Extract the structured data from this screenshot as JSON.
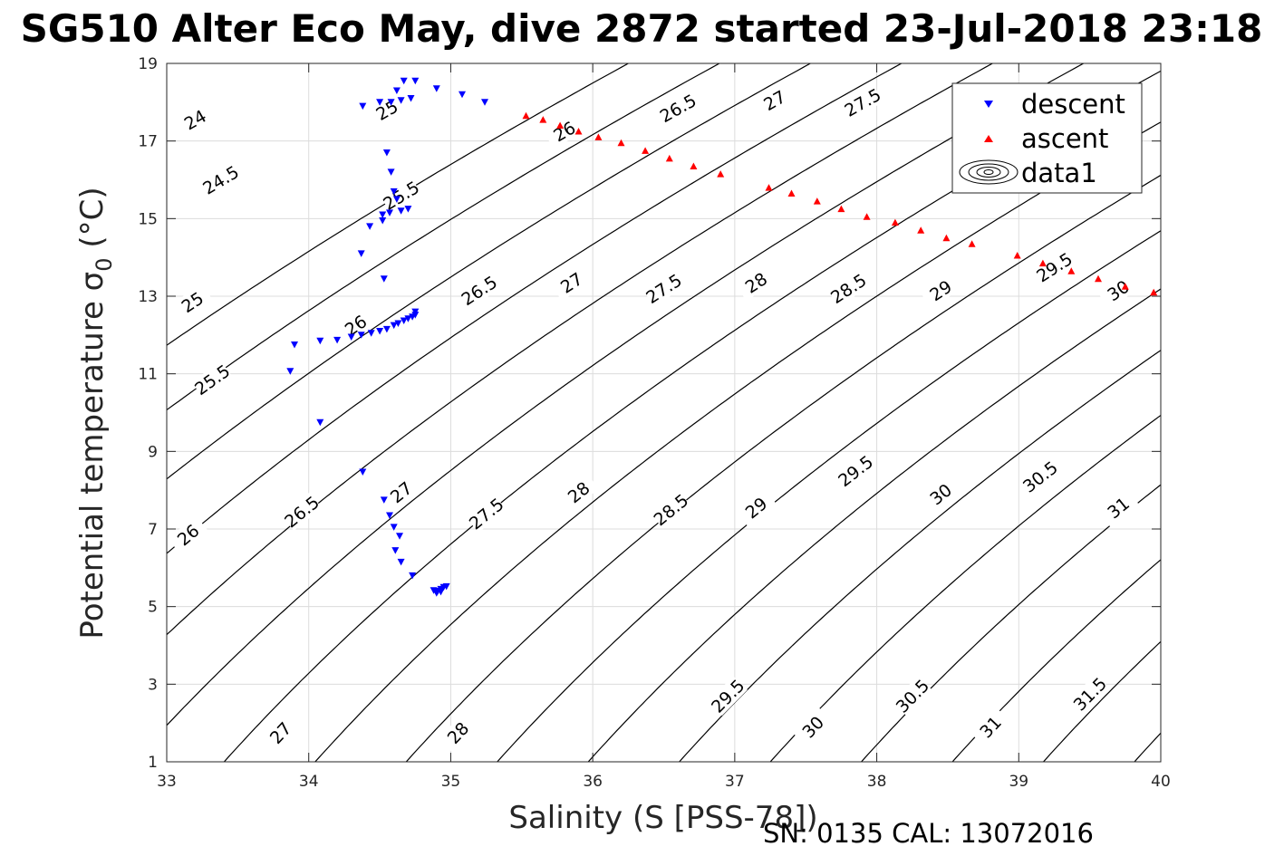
{
  "chart_data": {
    "type": "scatter",
    "title": "SG510 Alter Eco May, dive 2872 started 23-Jul-2018 23:18",
    "xlabel": "Salinity (S [PSS-78])",
    "ylabel": "Potential temperature σ₀ (°C)",
    "ylabel_main": "Potential temperature σ",
    "ylabel_sub": "0",
    "ylabel_unit": " (°C)",
    "footer": "SN: 0135  CAL: 13072016",
    "xlim": [
      33,
      40
    ],
    "ylim": [
      1,
      19
    ],
    "xticks": [
      "33",
      "34",
      "35",
      "36",
      "37",
      "38",
      "39",
      "40"
    ],
    "yticks": [
      "1",
      "3",
      "5",
      "7",
      "9",
      "11",
      "13",
      "15",
      "17",
      "19"
    ],
    "grid": true,
    "legend_position": "top-right",
    "legend": [
      "descent",
      "ascent",
      "data1"
    ],
    "colors": {
      "descent": "#0000ff",
      "ascent": "#ff0000",
      "contour": "#000000"
    },
    "series": [
      {
        "name": "descent",
        "marker": "triangle-down",
        "color": "#0000ff",
        "points": [
          [
            34.38,
            17.9
          ],
          [
            34.5,
            18.0
          ],
          [
            34.58,
            18.0
          ],
          [
            34.65,
            18.05
          ],
          [
            34.72,
            18.1
          ],
          [
            34.62,
            18.3
          ],
          [
            34.67,
            18.55
          ],
          [
            34.75,
            18.55
          ],
          [
            34.9,
            18.35
          ],
          [
            35.08,
            18.2
          ],
          [
            35.24,
            18.0
          ],
          [
            34.55,
            16.7
          ],
          [
            34.58,
            16.2
          ],
          [
            34.6,
            15.7
          ],
          [
            34.62,
            15.5
          ],
          [
            34.7,
            15.25
          ],
          [
            34.65,
            15.2
          ],
          [
            34.57,
            15.15
          ],
          [
            34.52,
            15.1
          ],
          [
            34.52,
            14.95
          ],
          [
            34.43,
            14.8
          ],
          [
            34.37,
            14.1
          ],
          [
            34.53,
            13.45
          ],
          [
            34.75,
            12.6
          ],
          [
            34.75,
            12.52
          ],
          [
            34.73,
            12.47
          ],
          [
            34.7,
            12.42
          ],
          [
            34.67,
            12.37
          ],
          [
            34.63,
            12.3
          ],
          [
            34.6,
            12.25
          ],
          [
            34.55,
            12.15
          ],
          [
            34.5,
            12.1
          ],
          [
            34.44,
            12.05
          ],
          [
            34.37,
            12.0
          ],
          [
            34.3,
            11.95
          ],
          [
            34.2,
            11.87
          ],
          [
            34.08,
            11.85
          ],
          [
            33.9,
            11.75
          ],
          [
            33.87,
            11.07
          ],
          [
            34.08,
            9.75
          ],
          [
            34.38,
            8.47
          ],
          [
            34.53,
            7.75
          ],
          [
            34.57,
            7.35
          ],
          [
            34.6,
            7.05
          ],
          [
            34.64,
            6.82
          ],
          [
            34.61,
            6.45
          ],
          [
            34.65,
            6.15
          ],
          [
            34.73,
            5.8
          ],
          [
            34.88,
            5.42
          ],
          [
            34.91,
            5.4
          ],
          [
            34.93,
            5.45
          ],
          [
            34.95,
            5.5
          ],
          [
            34.97,
            5.52
          ],
          [
            34.9,
            5.35
          ],
          [
            34.93,
            5.38
          ]
        ]
      },
      {
        "name": "ascent",
        "marker": "triangle-up",
        "color": "#ff0000",
        "points": [
          [
            35.53,
            17.65
          ],
          [
            35.65,
            17.55
          ],
          [
            35.77,
            17.4
          ],
          [
            35.9,
            17.25
          ],
          [
            36.04,
            17.1
          ],
          [
            36.2,
            16.95
          ],
          [
            36.37,
            16.75
          ],
          [
            36.54,
            16.55
          ],
          [
            36.71,
            16.35
          ],
          [
            36.9,
            16.15
          ],
          [
            37.24,
            15.8
          ],
          [
            37.4,
            15.65
          ],
          [
            37.58,
            15.45
          ],
          [
            37.75,
            15.25
          ],
          [
            37.93,
            15.05
          ],
          [
            38.13,
            14.9
          ],
          [
            38.31,
            14.7
          ],
          [
            38.49,
            14.5
          ],
          [
            38.67,
            14.35
          ],
          [
            38.99,
            14.05
          ],
          [
            39.17,
            13.85
          ],
          [
            39.37,
            13.65
          ],
          [
            39.56,
            13.45
          ],
          [
            39.75,
            13.25
          ],
          [
            39.95,
            13.1
          ]
        ]
      },
      {
        "name": "data1",
        "type": "contour",
        "description": "sigma-0 density isopycnals",
        "levels": [
          24,
          24.5,
          25,
          25.5,
          26,
          26.5,
          27,
          27.5,
          28,
          28.5,
          29,
          29.5,
          30,
          30.5,
          31,
          31.5
        ],
        "level_labels": [
          {
            "text": "24",
            "s": 33.2,
            "t": 17.55
          },
          {
            "text": "24.5",
            "s": 33.38,
            "t": 16.0
          },
          {
            "text": "25",
            "s": 34.55,
            "t": 17.8
          },
          {
            "text": "25",
            "s": 33.18,
            "t": 12.85
          },
          {
            "text": "25.5",
            "s": 34.65,
            "t": 15.6
          },
          {
            "text": "25.5",
            "s": 33.32,
            "t": 10.85
          },
          {
            "text": "26",
            "s": 35.8,
            "t": 17.25
          },
          {
            "text": "26",
            "s": 34.33,
            "t": 12.25
          },
          {
            "text": "26",
            "s": 33.15,
            "t": 6.85
          },
          {
            "text": "26.5",
            "s": 36.6,
            "t": 17.85
          },
          {
            "text": "26.5",
            "s": 35.2,
            "t": 13.15
          },
          {
            "text": "26.5",
            "s": 33.95,
            "t": 7.45
          },
          {
            "text": "27",
            "s": 37.28,
            "t": 18.05
          },
          {
            "text": "27",
            "s": 35.85,
            "t": 13.35
          },
          {
            "text": "27",
            "s": 34.65,
            "t": 7.95
          },
          {
            "text": "27",
            "s": 33.8,
            "t": 1.75
          },
          {
            "text": "27.5",
            "s": 37.9,
            "t": 18.0
          },
          {
            "text": "27.5",
            "s": 36.5,
            "t": 13.2
          },
          {
            "text": "27.5",
            "s": 35.25,
            "t": 7.4
          },
          {
            "text": "28",
            "s": 37.15,
            "t": 13.35
          },
          {
            "text": "28",
            "s": 35.9,
            "t": 7.95
          },
          {
            "text": "28",
            "s": 35.05,
            "t": 1.75
          },
          {
            "text": "28.5",
            "s": 37.8,
            "t": 13.2
          },
          {
            "text": "28.5",
            "s": 36.55,
            "t": 7.5
          },
          {
            "text": "29",
            "s": 38.45,
            "t": 13.15
          },
          {
            "text": "29",
            "s": 37.15,
            "t": 7.55
          },
          {
            "text": "29.5",
            "s": 39.25,
            "t": 13.75
          },
          {
            "text": "29.5",
            "s": 37.85,
            "t": 8.5
          },
          {
            "text": "29.5",
            "s": 36.95,
            "t": 2.7
          },
          {
            "text": "30",
            "s": 39.7,
            "t": 13.15
          },
          {
            "text": "30",
            "s": 38.45,
            "t": 7.9
          },
          {
            "text": "30",
            "s": 37.55,
            "t": 1.9
          },
          {
            "text": "30.5",
            "s": 39.15,
            "t": 8.35
          },
          {
            "text": "30.5",
            "s": 38.25,
            "t": 2.7
          },
          {
            "text": "31",
            "s": 39.7,
            "t": 7.55
          },
          {
            "text": "31",
            "s": 38.8,
            "t": 1.9
          },
          {
            "text": "31.5",
            "s": 39.5,
            "t": 2.75
          }
        ]
      }
    ]
  }
}
